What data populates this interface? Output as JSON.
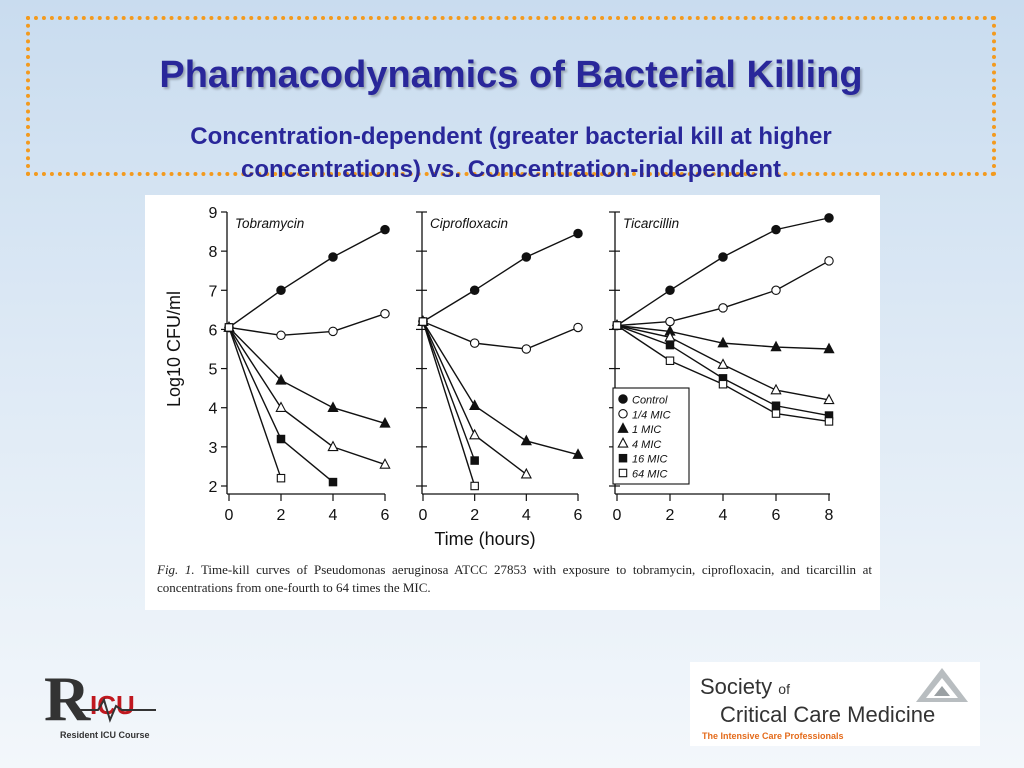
{
  "slide": {
    "title": "Pharmacodynamics of Bacterial Killing",
    "subtitle_line1": "Concentration-dependent (greater bacterial kill at higher",
    "subtitle_line2": "concentrations) vs. Concentration-independent"
  },
  "figure": {
    "caption_label": "Fig. 1.",
    "caption_text": "Time-kill curves of Pseudomonas aeruginosa ATCC 27853 with exposure to tobramycin, ciprofloxacin, and ticarcillin at concentrations from one-fourth to 64 times the MIC."
  },
  "chart_data": {
    "type": "line",
    "ylabel": "Log10 CFU/ml",
    "xlabel": "Time (hours)",
    "ylim": [
      2,
      9
    ],
    "yticks": [
      "2",
      "3",
      "4",
      "5",
      "6",
      "7",
      "8",
      "9"
    ],
    "legend": {
      "placement": "inside right panel, lower-left",
      "entries": [
        {
          "label": "Control",
          "marker": "circle-filled"
        },
        {
          "label": "1/4 MIC",
          "marker": "circle-open"
        },
        {
          "label": "1 MIC",
          "marker": "triangle-filled"
        },
        {
          "label": "4 MIC",
          "marker": "triangle-open"
        },
        {
          "label": "16 MIC",
          "marker": "square-filled"
        },
        {
          "label": "64 MIC",
          "marker": "square-open"
        }
      ]
    },
    "panels": [
      {
        "title": "Tobramycin",
        "xlim": [
          0,
          6
        ],
        "xticks": [
          "0",
          "2",
          "4",
          "6"
        ],
        "series": [
          {
            "name": "Control",
            "marker": "circle-filled",
            "x": [
              0,
              2,
              4,
              6
            ],
            "y": [
              6.05,
              7.0,
              7.85,
              8.55
            ]
          },
          {
            "name": "1/4 MIC",
            "marker": "circle-open",
            "x": [
              0,
              2,
              4,
              6
            ],
            "y": [
              6.05,
              5.85,
              5.95,
              6.4
            ]
          },
          {
            "name": "1 MIC",
            "marker": "triangle-filled",
            "x": [
              0,
              2,
              4,
              6
            ],
            "y": [
              6.05,
              4.7,
              4.0,
              3.6
            ]
          },
          {
            "name": "4 MIC",
            "marker": "triangle-open",
            "x": [
              0,
              2,
              4,
              6
            ],
            "y": [
              6.05,
              4.0,
              3.0,
              2.55
            ]
          },
          {
            "name": "16 MIC",
            "marker": "square-filled",
            "x": [
              0,
              2,
              4
            ],
            "y": [
              6.05,
              3.2,
              2.1
            ]
          },
          {
            "name": "64 MIC",
            "marker": "square-open",
            "x": [
              0,
              2
            ],
            "y": [
              6.05,
              2.2
            ]
          }
        ]
      },
      {
        "title": "Ciprofloxacin",
        "xlim": [
          0,
          6
        ],
        "xticks": [
          "0",
          "2",
          "4",
          "6"
        ],
        "series": [
          {
            "name": "Control",
            "marker": "circle-filled",
            "x": [
              0,
              2,
              4,
              6
            ],
            "y": [
              6.2,
              7.0,
              7.85,
              8.45
            ]
          },
          {
            "name": "1/4 MIC",
            "marker": "circle-open",
            "x": [
              0,
              2,
              4,
              6
            ],
            "y": [
              6.2,
              5.65,
              5.5,
              6.05
            ]
          },
          {
            "name": "1 MIC",
            "marker": "triangle-filled",
            "x": [
              0,
              2,
              4,
              6
            ],
            "y": [
              6.2,
              4.05,
              3.15,
              2.8
            ]
          },
          {
            "name": "4 MIC",
            "marker": "triangle-open",
            "x": [
              0,
              2,
              4
            ],
            "y": [
              6.2,
              3.3,
              2.3
            ]
          },
          {
            "name": "16 MIC",
            "marker": "square-filled",
            "x": [
              0,
              2
            ],
            "y": [
              6.2,
              2.65
            ]
          },
          {
            "name": "64 MIC",
            "marker": "square-open",
            "x": [
              0,
              2
            ],
            "y": [
              6.2,
              2.0
            ]
          }
        ]
      },
      {
        "title": "Ticarcillin",
        "xlim": [
          0,
          8
        ],
        "xticks": [
          "0",
          "2",
          "4",
          "6",
          "8"
        ],
        "series": [
          {
            "name": "Control",
            "marker": "circle-filled",
            "x": [
              0,
              2,
              4,
              6,
              8
            ],
            "y": [
              6.1,
              7.0,
              7.85,
              8.55,
              8.85
            ]
          },
          {
            "name": "1/4 MIC",
            "marker": "circle-open",
            "x": [
              0,
              2,
              4,
              6,
              8
            ],
            "y": [
              6.1,
              6.2,
              6.55,
              7.0,
              7.75
            ]
          },
          {
            "name": "1 MIC",
            "marker": "triangle-filled",
            "x": [
              0,
              2,
              4,
              6,
              8
            ],
            "y": [
              6.1,
              5.95,
              5.65,
              5.55,
              5.5
            ]
          },
          {
            "name": "4 MIC",
            "marker": "triangle-open",
            "x": [
              0,
              2,
              4,
              6,
              8
            ],
            "y": [
              6.1,
              5.8,
              5.1,
              4.45,
              4.2
            ]
          },
          {
            "name": "16 MIC",
            "marker": "square-filled",
            "x": [
              0,
              2,
              4,
              6,
              8
            ],
            "y": [
              6.1,
              5.6,
              4.75,
              4.05,
              3.8
            ]
          },
          {
            "name": "64 MIC",
            "marker": "square-open",
            "x": [
              0,
              2,
              4,
              6,
              8
            ],
            "y": [
              6.1,
              5.2,
              4.6,
              3.85,
              3.65
            ]
          }
        ]
      }
    ]
  },
  "logos": {
    "ricu_subtitle": "Resident ICU Course",
    "ricu_mark": "R",
    "ricu_icu": "ICU",
    "sccm_line1": "Society",
    "sccm_of": "of",
    "sccm_line2": "Critical Care Medicine",
    "sccm_tagline": "The Intensive Care Professionals"
  },
  "colors": {
    "title": "#29279a",
    "border": "#f39a1e",
    "ricu_red": "#c0181f",
    "sccm_tagline": "#e46b1b"
  }
}
